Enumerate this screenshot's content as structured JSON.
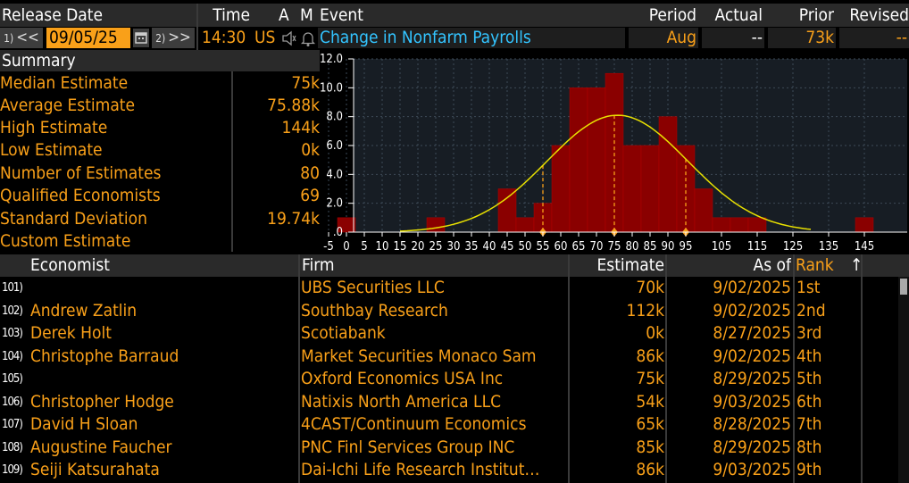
{
  "header": {
    "release_date_label": "Release Date",
    "time_label": "Time",
    "a_label": "A",
    "m_label": "M",
    "event_label": "Event",
    "period_label": "Period",
    "actual_label": "Actual",
    "prior_label": "Prior",
    "revised_label": "Revised"
  },
  "controls": {
    "prev_num": "1)",
    "prev_arrow": "<<",
    "date": "09/05/25",
    "next_num": "2)",
    "next_arrow": ">>",
    "time": "14:30",
    "country": "US",
    "event": "Change in Nonfarm Payrolls",
    "period": "Aug",
    "actual": "--",
    "prior": "73k",
    "revised": "--"
  },
  "summary": {
    "title": "Summary",
    "items": [
      {
        "label": "Median Estimate",
        "value": "75k"
      },
      {
        "label": "Average Estimate",
        "value": "75.88k"
      },
      {
        "label": "High Estimate",
        "value": "144k"
      },
      {
        "label": "Low Estimate",
        "value": "0k"
      },
      {
        "label": "Number of Estimates",
        "value": "80"
      },
      {
        "label": "Qualified Economists",
        "value": "69"
      },
      {
        "label": "Standard Deviation",
        "value": "19.74k"
      },
      {
        "label": "Custom Estimate",
        "value": ""
      }
    ]
  },
  "chart_data": {
    "type": "bar",
    "y_ticks": [
      "12.0",
      "10.0",
      "8.0",
      "6.0",
      "4.0",
      "2.0",
      ".0"
    ],
    "ylim": [
      0,
      12
    ],
    "x_ticks": [
      "-5",
      "0",
      "5",
      "10",
      "15",
      "20",
      "25",
      "30",
      "35",
      "40",
      "45",
      "50",
      "55",
      "60",
      "65",
      "70",
      "75",
      "80",
      "85",
      "90",
      "95",
      "105",
      "115",
      "125",
      "135",
      "145"
    ],
    "bins": [
      0,
      5,
      10,
      15,
      20,
      25,
      30,
      35,
      40,
      45,
      50,
      55,
      60,
      65,
      70,
      75,
      80,
      85,
      90,
      95,
      100,
      105,
      110,
      115,
      120,
      125,
      130,
      135,
      140,
      145
    ],
    "values": [
      1,
      0,
      0,
      0,
      0,
      1,
      0,
      0,
      0,
      3,
      1,
      2,
      6,
      10,
      10,
      11,
      6,
      6,
      8,
      6,
      3,
      1,
      1,
      1,
      0,
      0,
      0,
      0,
      0,
      1
    ],
    "markers": [
      55,
      75,
      95
    ],
    "normal_curve": {
      "mean": 75.88,
      "std": 19.74,
      "peak": 8.1,
      "x_range": [
        15,
        130
      ]
    },
    "colors": {
      "bar": "#8a0000",
      "bar_edge": "#b30000",
      "curve": "#e8e000",
      "marker": "#f9a019"
    }
  },
  "table": {
    "columns": [
      "Economist",
      "Firm",
      "Estimate",
      "As of",
      "Rank"
    ],
    "sort_icon": "↑",
    "rows": [
      {
        "num": "101)",
        "economist": "",
        "firm": "UBS Securities LLC",
        "estimate": "70k",
        "as_of": "9/02/2025",
        "rank": "1st"
      },
      {
        "num": "102)",
        "economist": "Andrew Zatlin",
        "firm": "Southbay Research",
        "estimate": "112k",
        "as_of": "9/02/2025",
        "rank": "2nd"
      },
      {
        "num": "103)",
        "economist": "Derek Holt",
        "firm": "Scotiabank",
        "estimate": "0k",
        "as_of": "8/27/2025",
        "rank": "3rd"
      },
      {
        "num": "104)",
        "economist": "Christophe Barraud",
        "firm": "Market Securities Monaco Sam",
        "estimate": "86k",
        "as_of": "9/02/2025",
        "rank": "4th"
      },
      {
        "num": "105)",
        "economist": "",
        "firm": "Oxford Economics USA Inc",
        "estimate": "75k",
        "as_of": "8/29/2025",
        "rank": "5th"
      },
      {
        "num": "106)",
        "economist": "Christopher Hodge",
        "firm": "Natixis North America LLC",
        "estimate": "54k",
        "as_of": "9/03/2025",
        "rank": "6th"
      },
      {
        "num": "107)",
        "economist": "David H Sloan",
        "firm": "4CAST/Continuum Economics",
        "estimate": "65k",
        "as_of": "8/28/2025",
        "rank": "7th"
      },
      {
        "num": "108)",
        "economist": "Augustine Faucher",
        "firm": "PNC Finl Services Group INC",
        "estimate": "85k",
        "as_of": "8/29/2025",
        "rank": "8th"
      },
      {
        "num": "109)",
        "economist": "Seiji Katsurahata",
        "firm": "Dai-Ichi Life Research Institut…",
        "estimate": "86k",
        "as_of": "9/03/2025",
        "rank": "9th"
      }
    ]
  }
}
